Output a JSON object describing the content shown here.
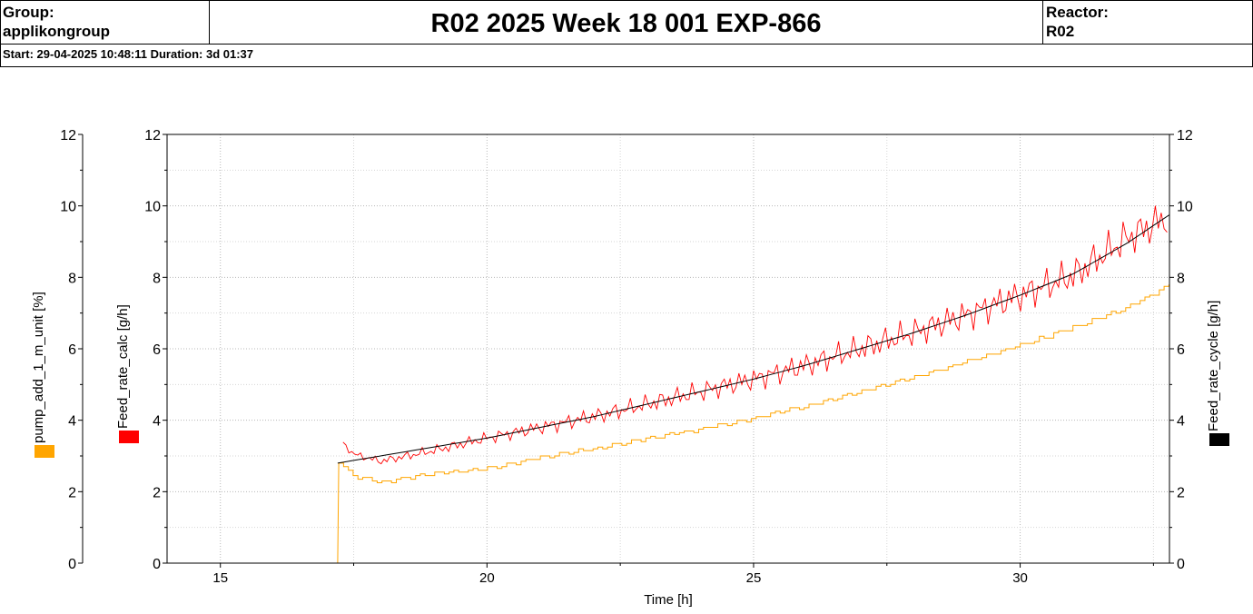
{
  "header": {
    "group_label": "Group:",
    "group_value": "applikongroup",
    "title": "R02 2025 Week 18 001 EXP-866",
    "reactor_label": "Reactor:",
    "reactor_value": "R02",
    "start_line": "Start: 29-04-2025 10:48:11 Duration: 3d 01:37"
  },
  "chart_data": {
    "type": "line",
    "xlabel": "Time [h]",
    "xlim": [
      14,
      32.8
    ],
    "xticks": [
      15,
      20,
      25,
      30
    ],
    "grid": true,
    "axes": [
      {
        "id": "pump",
        "label": "pump_add_1_m_unit  [%]",
        "color": "#FFA500",
        "ylim": [
          0,
          12
        ],
        "ticks": [
          0,
          2,
          4,
          6,
          8,
          10,
          12
        ],
        "side": "left-outer"
      },
      {
        "id": "calc",
        "label": "Feed_rate_calc  [g/h]",
        "color": "#FF0000",
        "ylim": [
          0,
          12
        ],
        "ticks": [
          0,
          2,
          4,
          6,
          8,
          10,
          12
        ],
        "side": "left-inner"
      },
      {
        "id": "cycle",
        "label": "Feed_rate_cycle  [g/h]",
        "color": "#000000",
        "ylim": [
          0,
          12
        ],
        "ticks": [
          0,
          2,
          4,
          6,
          8,
          10,
          12
        ],
        "side": "right"
      }
    ],
    "series": [
      {
        "name": "pump_add_1_m_unit",
        "axis": "pump",
        "color": "#FFA500",
        "style": "step",
        "x": [
          17.2,
          17.22,
          17.5,
          18.0,
          18.5,
          19.0,
          20.0,
          21.0,
          22.0,
          23.0,
          24.0,
          25.0,
          26.0,
          27.0,
          28.0,
          29.0,
          30.0,
          31.0,
          32.0,
          32.8
        ],
        "y": [
          0,
          2.8,
          2.45,
          2.25,
          2.4,
          2.5,
          2.65,
          2.95,
          3.2,
          3.5,
          3.75,
          4.05,
          4.4,
          4.8,
          5.2,
          5.65,
          6.1,
          6.6,
          7.15,
          7.8
        ]
      },
      {
        "name": "Feed_rate_calc",
        "axis": "calc",
        "color": "#FF0000",
        "style": "noisy",
        "x": [
          17.3,
          17.5,
          18.0,
          19.0,
          20.0,
          21.0,
          22.0,
          23.0,
          24.0,
          25.0,
          26.0,
          27.0,
          28.0,
          29.0,
          30.0,
          31.0,
          32.0,
          32.8
        ],
        "y": [
          3.35,
          3.05,
          2.85,
          3.15,
          3.5,
          3.8,
          4.1,
          4.45,
          4.8,
          5.15,
          5.55,
          6.0,
          6.45,
          6.95,
          7.5,
          8.05,
          9.1,
          9.7
        ]
      },
      {
        "name": "Feed_rate_cycle",
        "axis": "cycle",
        "color": "#000000",
        "style": "smooth",
        "x": [
          17.2,
          18.0,
          19.0,
          20.0,
          21.0,
          22.0,
          23.0,
          24.0,
          25.0,
          26.0,
          27.0,
          28.0,
          29.0,
          30.0,
          31.0,
          32.0,
          32.8
        ],
        "y": [
          2.8,
          3.0,
          3.25,
          3.5,
          3.8,
          4.1,
          4.45,
          4.8,
          5.15,
          5.55,
          6.0,
          6.45,
          6.95,
          7.5,
          8.1,
          8.95,
          9.75
        ]
      }
    ]
  }
}
